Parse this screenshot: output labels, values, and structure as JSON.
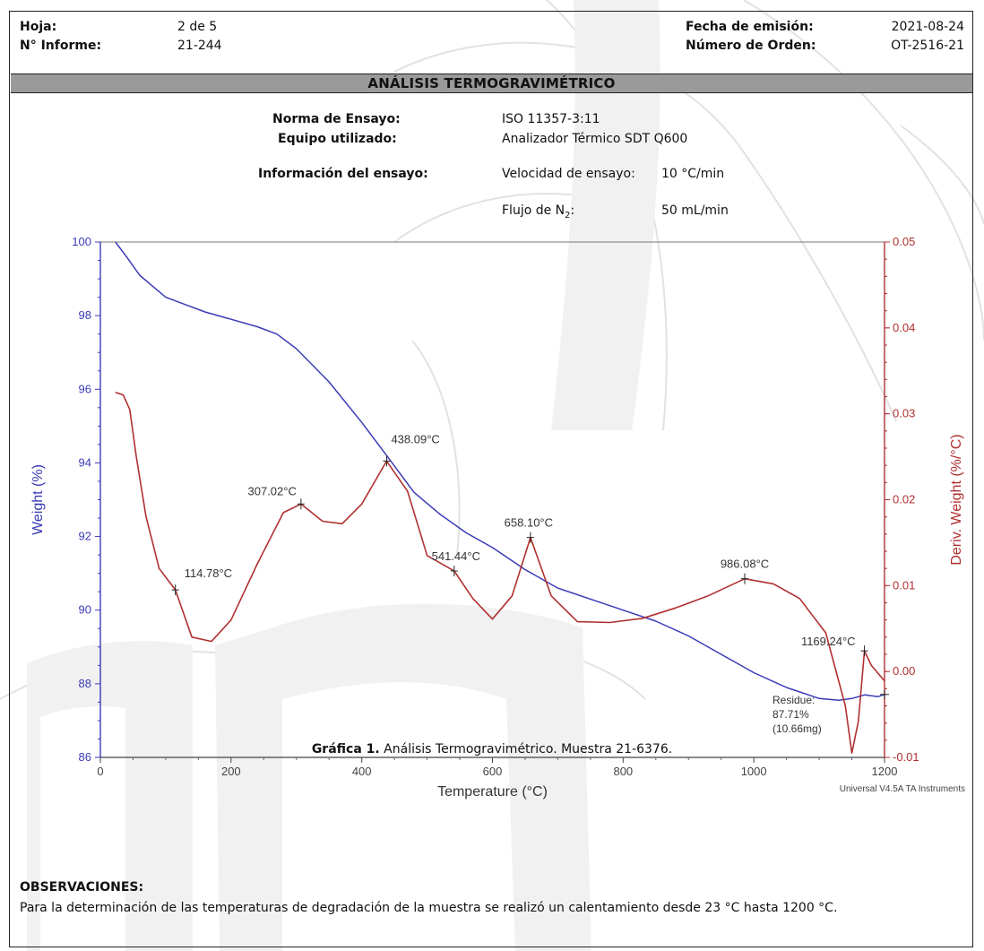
{
  "header": {
    "hoja_label": "Hoja:",
    "hoja_value": "2 de 5",
    "informe_label": "N° Informe:",
    "informe_value": "21-244",
    "fecha_label": "Fecha de emisión:",
    "fecha_value": "2021-08-24",
    "orden_label": "Número de Orden:",
    "orden_value": "OT-2516-21"
  },
  "section_title": "ANÁLISIS TERMOGRAVIMÉTRICO",
  "test_info": {
    "norma_label": "Norma de Ensayo:",
    "norma_value": "ISO 11357-3:11",
    "equipo_label": "Equipo utilizado:",
    "equipo_value": "Analizador Térmico SDT Q600",
    "info_label": "Información del ensayo:",
    "velocidad_label": "Velocidad de ensayo:",
    "velocidad_value": "10 °C/min",
    "flujo_label": "Flujo de N",
    "flujo_sub": "2",
    "flujo_colon": ":",
    "flujo_value": "50 mL/min"
  },
  "caption": {
    "bold": "Gráfica 1.",
    "text": " Análisis Termogravimétrico. Muestra 21-6376."
  },
  "observations": {
    "title": "OBSERVACIONES:",
    "text": "Para la determinación de las temperaturas de degradación de la muestra se realizó un calentamiento desde 23 °C hasta 1200 °C."
  },
  "chart_data": {
    "type": "line",
    "xlabel": "Temperature (°C)",
    "ylabel": "Weight (%)",
    "y2label": "Deriv. Weight (%/°C)",
    "xlim": [
      0,
      1200
    ],
    "ylim": [
      86,
      100
    ],
    "y2lim": [
      -0.01,
      0.05
    ],
    "xticks": [
      0,
      200,
      400,
      600,
      800,
      1000,
      1200
    ],
    "yticks": [
      86,
      88,
      90,
      92,
      94,
      96,
      98,
      100
    ],
    "y2ticks": [
      -0.01,
      0.0,
      0.01,
      0.02,
      0.03,
      0.04,
      0.05
    ],
    "y2ticklabels": [
      "-0.01",
      "0.00",
      "0.01",
      "0.02",
      "0.03",
      "0.04",
      "0.05"
    ],
    "footer": "Universal V4.5A TA Instruments",
    "colors": {
      "weight": "#3a3ab8",
      "deriv": "#b03030",
      "axis_left": "#3a3ab8",
      "axis_right": "#b03030"
    },
    "series": [
      {
        "axis": "left",
        "x": [
          23,
          40,
          60,
          80,
          100,
          130,
          160,
          200,
          240,
          270,
          300,
          350,
          400,
          438,
          480,
          520,
          560,
          600,
          650,
          700,
          750,
          800,
          850,
          900,
          950,
          1000,
          1050,
          1100,
          1130,
          1150,
          1170,
          1190,
          1200
        ],
        "y": [
          100.0,
          99.6,
          99.1,
          98.8,
          98.5,
          98.3,
          98.1,
          97.9,
          97.7,
          97.5,
          97.1,
          96.2,
          95.1,
          94.2,
          93.2,
          92.6,
          92.1,
          91.7,
          91.1,
          90.6,
          90.3,
          90.0,
          89.7,
          89.3,
          88.8,
          88.3,
          87.9,
          87.6,
          87.55,
          87.6,
          87.7,
          87.65,
          87.71
        ]
      },
      {
        "axis": "right",
        "x": [
          23,
          35,
          45,
          55,
          70,
          90,
          114.78,
          140,
          170,
          200,
          240,
          280,
          307.02,
          340,
          370,
          400,
          438.09,
          470,
          500,
          541.44,
          570,
          600,
          630,
          658.1,
          690,
          730,
          780,
          830,
          880,
          930,
          986.08,
          1030,
          1070,
          1110,
          1140,
          1150,
          1160,
          1169.24,
          1180,
          1190,
          1200
        ],
        "y": [
          0.0325,
          0.0322,
          0.0305,
          0.025,
          0.018,
          0.012,
          0.0095,
          0.004,
          0.0035,
          0.006,
          0.0125,
          0.0185,
          0.0195,
          0.0175,
          0.0172,
          0.0195,
          0.0245,
          0.021,
          0.0135,
          0.0117,
          0.0085,
          0.0061,
          0.0088,
          0.0156,
          0.0088,
          0.0058,
          0.0057,
          0.0062,
          0.0074,
          0.0088,
          0.0108,
          0.0102,
          0.0085,
          0.0045,
          -0.004,
          -0.0095,
          -0.0058,
          0.0024,
          0.0007,
          -0.0002,
          -0.0011
        ]
      }
    ],
    "annotations": [
      {
        "label": "114.78°C",
        "x": 114.78,
        "y2": 0.0095
      },
      {
        "label": "307.02°C",
        "x": 307.02,
        "y2": 0.0195
      },
      {
        "label": "438.09°C",
        "x": 438.09,
        "y2": 0.0245
      },
      {
        "label": "541.44°C",
        "x": 541.44,
        "y2": 0.0117
      },
      {
        "label": "658.10°C",
        "x": 658.1,
        "y2": 0.0156
      },
      {
        "label": "986.08°C",
        "x": 986.08,
        "y2": 0.0108
      },
      {
        "label": "1169.24°C",
        "x": 1169.24,
        "y2": 0.0024
      }
    ],
    "residue": {
      "lines": [
        "Residue:",
        "87.71%",
        "(10.66mg)"
      ],
      "x": 1200,
      "y": 87.71
    }
  }
}
